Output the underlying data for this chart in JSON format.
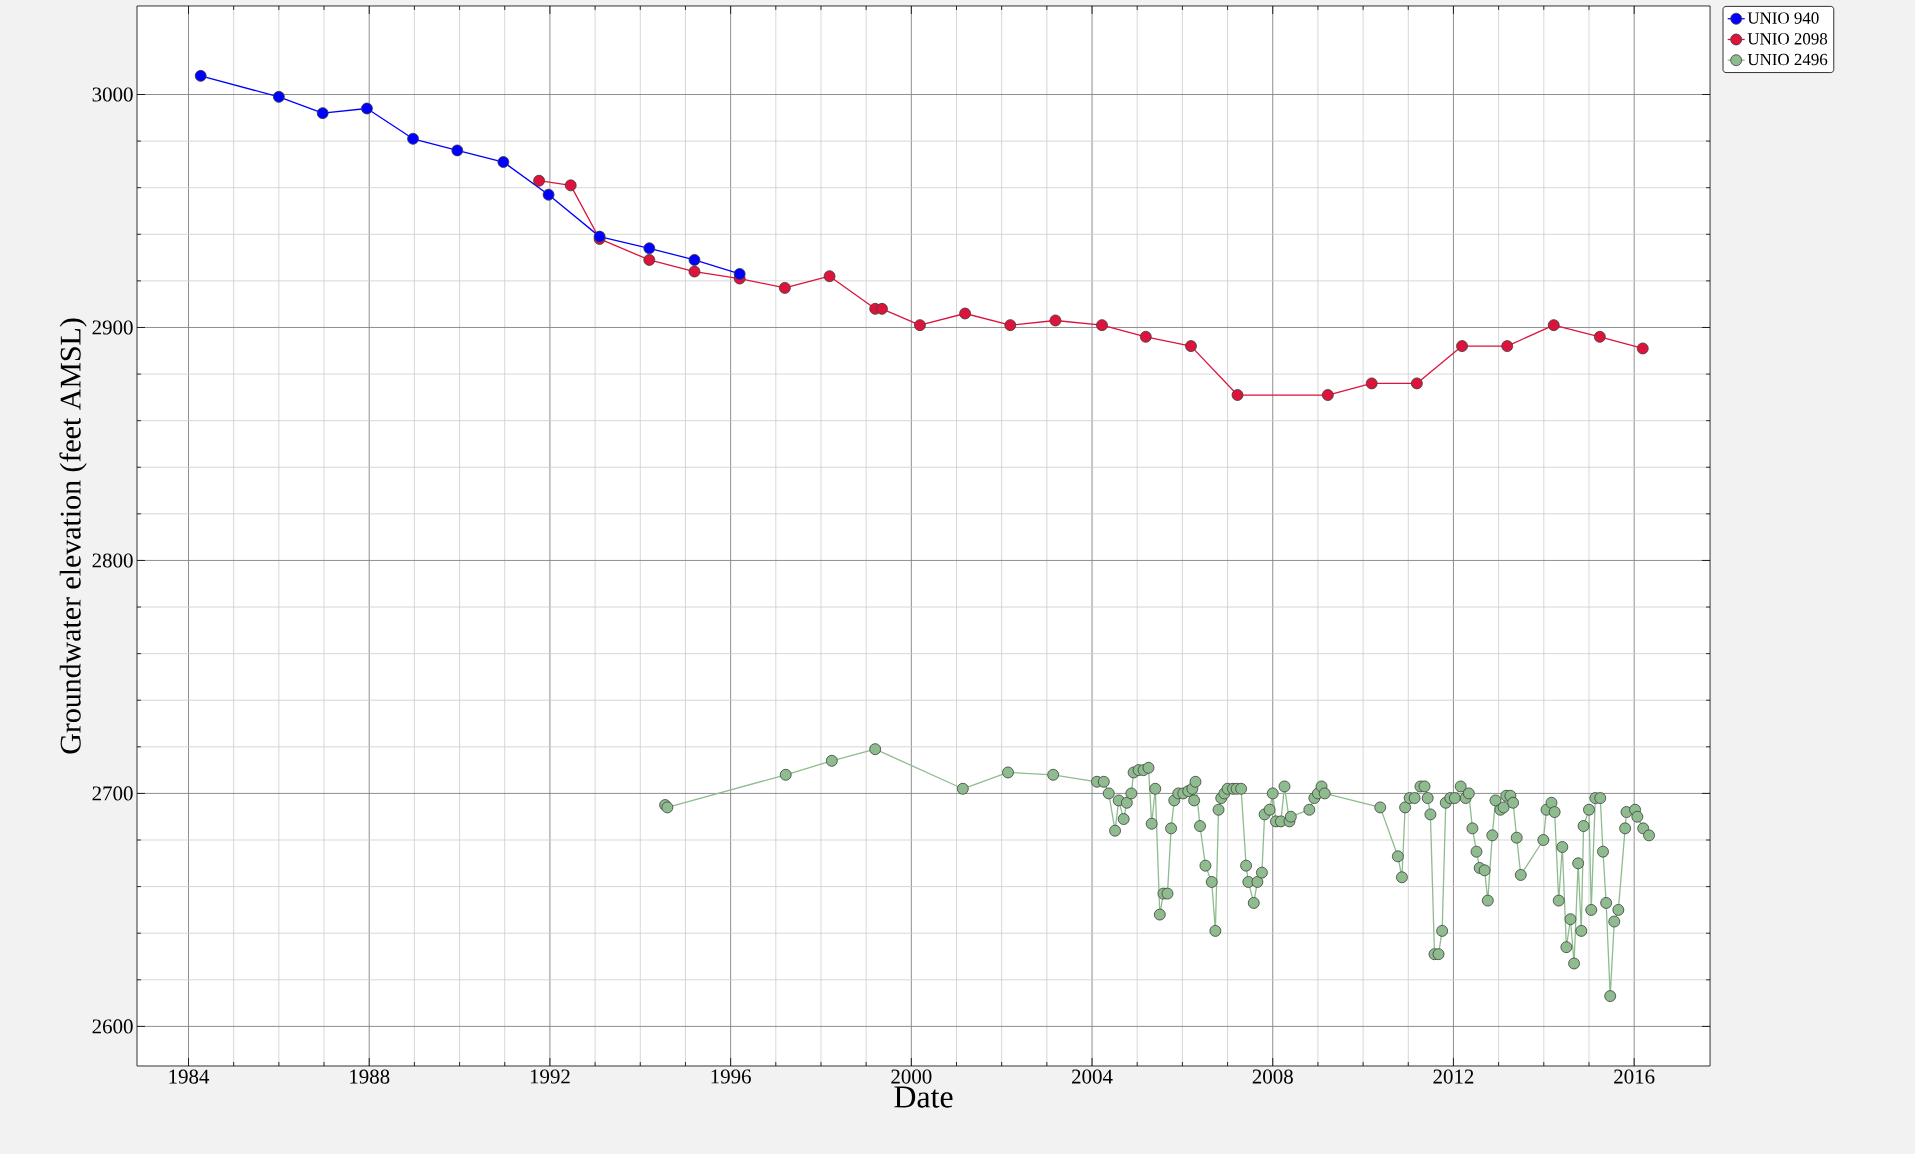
{
  "chart_data": {
    "type": "line",
    "xlabel": "Date",
    "ylabel": "Groundwater elevation (feet AMSL)",
    "xlim": [
      1982.86,
      2017.68
    ],
    "ylim": [
      2583,
      3038
    ],
    "xticks": [
      1984,
      1988,
      1992,
      1996,
      2000,
      2004,
      2008,
      2012,
      2016
    ],
    "yticks": [
      2600,
      2700,
      2800,
      2900,
      3000
    ],
    "grid": true,
    "legend": "top right",
    "marker": "circle",
    "line_style": "solid",
    "series": [
      {
        "name": "UNIO  940",
        "color": "#0000ff",
        "x": [
          1984.27,
          1986.0,
          1986.97,
          1987.95,
          1988.97,
          1989.95,
          1990.97,
          1991.97,
          1993.1,
          1994.2,
          1995.2,
          1996.2
        ],
        "values": [
          3008,
          2999,
          2992,
          2994,
          2981,
          2976,
          2971,
          2957,
          2939,
          2934,
          2929,
          2923
        ]
      },
      {
        "name": "UNIO  2098",
        "color": "#dc143c",
        "x": [
          1991.76,
          1992.46,
          1993.1,
          1994.2,
          1995.2,
          1996.2,
          1997.2,
          1998.19,
          1999.2,
          1999.35,
          2000.19,
          2001.19,
          2002.19,
          2003.19,
          2004.22,
          2005.19,
          2006.19,
          2007.22,
          2009.22,
          2010.19,
          2011.19,
          2012.19,
          2013.19,
          2014.22,
          2015.24,
          2016.19
        ],
        "values": [
          2963,
          2961,
          2938,
          2929,
          2924,
          2921,
          2917,
          2922,
          2908,
          2908,
          2901,
          2906,
          2901,
          2903,
          2901,
          2896,
          2892,
          2871,
          2871,
          2876,
          2876,
          2892,
          2892,
          2901,
          2896,
          2891
        ]
      },
      {
        "name": "UNIO  2496",
        "color": "#8fbc8f",
        "x": [
          1994.55,
          1994.6,
          1997.22,
          1998.24,
          1999.2,
          2001.14,
          2002.14,
          2003.14,
          2004.11,
          2004.26,
          2004.37,
          2004.51,
          2004.59,
          2004.7,
          2004.77,
          2004.87,
          2004.92,
          2005.03,
          2005.14,
          2005.25,
          2005.32,
          2005.4,
          2005.5,
          2005.58,
          2005.67,
          2005.75,
          2005.82,
          2005.91,
          2006.02,
          2006.13,
          2006.22,
          2006.26,
          2006.29,
          2006.39,
          2006.51,
          2006.65,
          2006.73,
          2006.8,
          2006.86,
          2006.93,
          2007.0,
          2007.12,
          2007.2,
          2007.3,
          2007.41,
          2007.46,
          2007.58,
          2007.66,
          2007.76,
          2007.82,
          2007.93,
          2008.0,
          2008.07,
          2008.18,
          2008.26,
          2008.37,
          2008.4,
          2008.81,
          2008.92,
          2009.0,
          2009.08,
          2009.15,
          2010.38,
          2010.77,
          2010.86,
          2010.93,
          2011.03,
          2011.14,
          2011.27,
          2011.36,
          2011.43,
          2011.49,
          2011.58,
          2011.67,
          2011.75,
          2011.83,
          2011.93,
          2012.03,
          2012.16,
          2012.27,
          2012.34,
          2012.42,
          2012.51,
          2012.58,
          2012.69,
          2012.76,
          2012.86,
          2012.93,
          2013.04,
          2013.11,
          2013.17,
          2013.26,
          2013.32,
          2013.4,
          2013.49,
          2013.99,
          2014.06,
          2014.17,
          2014.24,
          2014.33,
          2014.41,
          2014.5,
          2014.59,
          2014.67,
          2014.76,
          2014.83,
          2014.88,
          2015.0,
          2015.05,
          2015.14,
          2015.25,
          2015.31,
          2015.38,
          2015.47,
          2015.56,
          2015.65,
          2015.8,
          2015.83,
          2016.02,
          2016.07,
          2016.2,
          2016.33
        ],
        "values": [
          2695,
          2694,
          2708,
          2714,
          2719,
          2702,
          2709,
          2708,
          2705,
          2705,
          2700,
          2684,
          2697,
          2689,
          2696,
          2700,
          2709,
          2710,
          2710,
          2711,
          2687,
          2702,
          2648,
          2657,
          2657,
          2685,
          2697,
          2700,
          2700,
          2701,
          2702,
          2697,
          2705,
          2686,
          2669,
          2662,
          2641,
          2693,
          2698,
          2700,
          2702,
          2702,
          2702,
          2702,
          2669,
          2662,
          2653,
          2662,
          2666,
          2691,
          2693,
          2700,
          2688,
          2688,
          2703,
          2688,
          2690,
          2693,
          2698,
          2700,
          2703,
          2700,
          2694,
          2673,
          2664,
          2694,
          2698,
          2698,
          2703,
          2703,
          2698,
          2691,
          2631,
          2631,
          2641,
          2696,
          2698,
          2698,
          2703,
          2698,
          2700,
          2685,
          2675,
          2668,
          2667,
          2654,
          2682,
          2697,
          2693,
          2694,
          2699,
          2699,
          2696,
          2681,
          2665,
          2680,
          2693,
          2696,
          2692,
          2654,
          2677,
          2634,
          2646,
          2627,
          2670,
          2641,
          2686,
          2693,
          2650,
          2698,
          2698,
          2675,
          2653,
          2613,
          2645,
          2650,
          2685,
          2692,
          2693,
          2690,
          2685,
          2682
        ]
      }
    ]
  }
}
